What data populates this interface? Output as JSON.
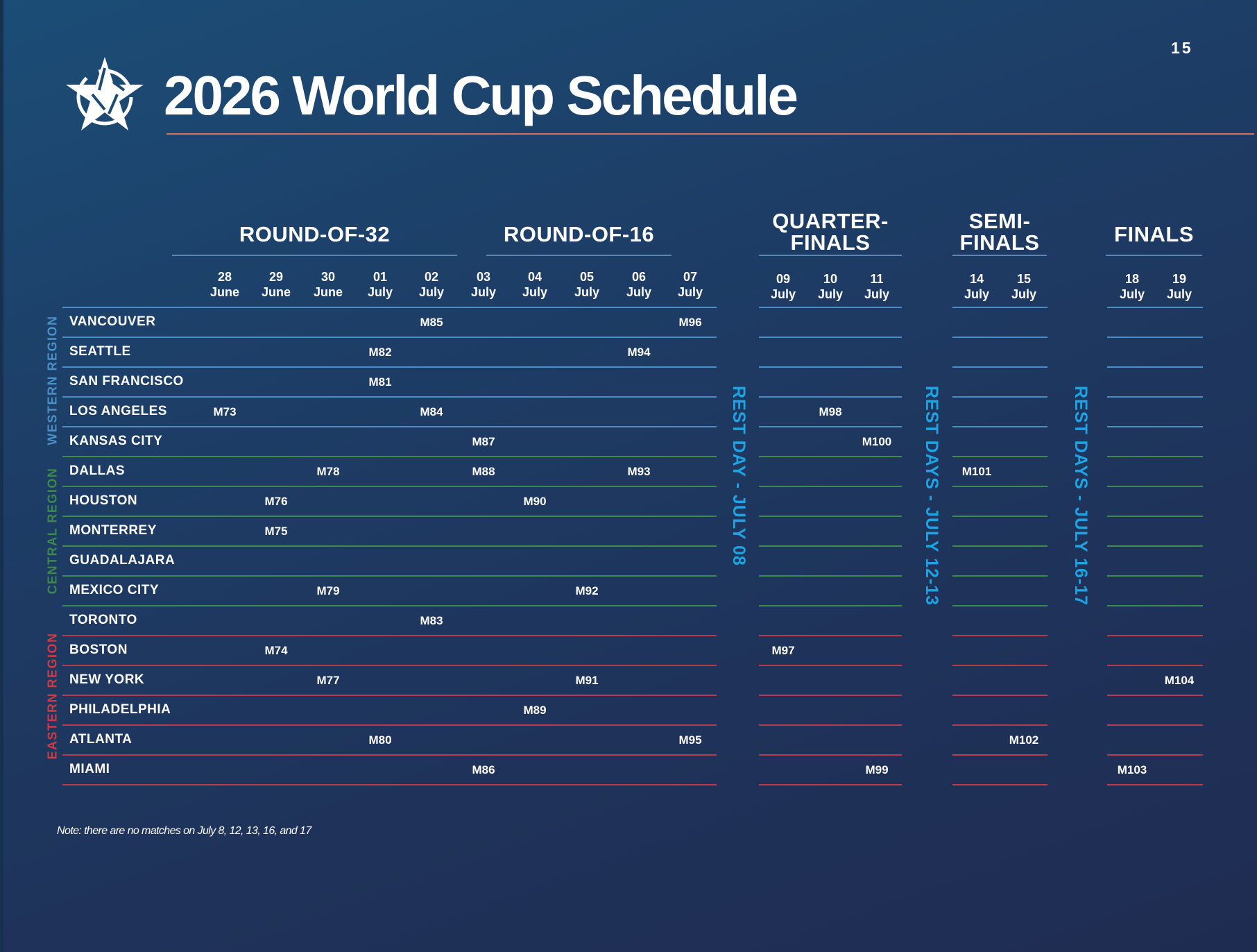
{
  "page_number": "15",
  "title": "2026 World Cup Schedule",
  "logo": "star-emblem-icon",
  "colors": {
    "accent_rule": "#d9705d",
    "western": "#4a90c8",
    "central": "#3b8a4a",
    "eastern": "#d03a45",
    "rest": "#1fa3e3"
  },
  "sections": [
    {
      "label": "ROUND-OF-32",
      "columns": [
        {
          "day": "28",
          "month": "June"
        },
        {
          "day": "29",
          "month": "June"
        },
        {
          "day": "30",
          "month": "June"
        },
        {
          "day": "01",
          "month": "July"
        },
        {
          "day": "02",
          "month": "July"
        }
      ]
    },
    {
      "label": "ROUND-OF-16",
      "columns": [
        {
          "day": "03",
          "month": "July"
        },
        {
          "day": "04",
          "month": "July"
        },
        {
          "day": "05",
          "month": "July"
        },
        {
          "day": "06",
          "month": "July"
        },
        {
          "day": "07",
          "month": "July"
        }
      ]
    },
    {
      "label": "QUARTER-\nFINALS",
      "columns": [
        {
          "day": "09",
          "month": "July"
        },
        {
          "day": "10",
          "month": "July"
        },
        {
          "day": "11",
          "month": "July"
        }
      ]
    },
    {
      "label": "SEMI-\nFINALS",
      "columns": [
        {
          "day": "14",
          "month": "July"
        },
        {
          "day": "15",
          "month": "July"
        }
      ]
    },
    {
      "label": "FINALS",
      "columns": [
        {
          "day": "18",
          "month": "July"
        },
        {
          "day": "19",
          "month": "July"
        }
      ]
    }
  ],
  "regions": [
    {
      "label": "WESTERN REGION",
      "key": "western"
    },
    {
      "label": "CENTRAL REGION",
      "key": "central"
    },
    {
      "label": "EASTERN REGION",
      "key": "eastern"
    }
  ],
  "rows": [
    {
      "city": "VANCOUVER",
      "region": "western",
      "matches": [
        "",
        "",
        "",
        "",
        "M85",
        "",
        "",
        "",
        "",
        "M96",
        "",
        "",
        "",
        "",
        "",
        "",
        ""
      ]
    },
    {
      "city": "SEATTLE",
      "region": "western",
      "matches": [
        "",
        "",
        "",
        "M82",
        "",
        "",
        "",
        "",
        "M94",
        "",
        "",
        "",
        "",
        "",
        "",
        "",
        ""
      ]
    },
    {
      "city": "SAN FRANCISCO",
      "region": "western",
      "matches": [
        "",
        "",
        "",
        "M81",
        "",
        "",
        "",
        "",
        "",
        "",
        "",
        "",
        "",
        "",
        "",
        "",
        ""
      ]
    },
    {
      "city": "LOS ANGELES",
      "region": "western",
      "matches": [
        "M73",
        "",
        "",
        "",
        "M84",
        "",
        "",
        "",
        "",
        "",
        "",
        "M98",
        "",
        "",
        "",
        "",
        ""
      ]
    },
    {
      "city": "KANSAS CITY",
      "region": "western",
      "matches": [
        "",
        "",
        "",
        "",
        "",
        "M87",
        "",
        "",
        "",
        "",
        "",
        "",
        "M100",
        "",
        "",
        "",
        ""
      ]
    },
    {
      "city": "DALLAS",
      "region": "central",
      "matches": [
        "",
        "",
        "M78",
        "",
        "",
        "M88",
        "",
        "",
        "M93",
        "",
        "",
        "",
        "",
        "M101",
        "",
        "",
        ""
      ]
    },
    {
      "city": "HOUSTON",
      "region": "central",
      "matches": [
        "",
        "M76",
        "",
        "",
        "",
        "",
        "M90",
        "",
        "",
        "",
        "",
        "",
        "",
        "",
        "",
        "",
        ""
      ]
    },
    {
      "city": "MONTERREY",
      "region": "central",
      "matches": [
        "",
        "M75",
        "",
        "",
        "",
        "",
        "",
        "",
        "",
        "",
        "",
        "",
        "",
        "",
        "",
        "",
        ""
      ]
    },
    {
      "city": "GUADALAJARA",
      "region": "central",
      "matches": [
        "",
        "",
        "",
        "",
        "",
        "",
        "",
        "",
        "",
        "",
        "",
        "",
        "",
        "",
        "",
        "",
        ""
      ]
    },
    {
      "city": "MEXICO CITY",
      "region": "central",
      "matches": [
        "",
        "",
        "M79",
        "",
        "",
        "",
        "",
        "M92",
        "",
        "",
        "",
        "",
        "",
        "",
        "",
        "",
        ""
      ]
    },
    {
      "city": "TORONTO",
      "region": "eastern",
      "matches": [
        "",
        "",
        "",
        "",
        "M83",
        "",
        "",
        "",
        "",
        "",
        "",
        "",
        "",
        "",
        "",
        "",
        ""
      ]
    },
    {
      "city": "BOSTON",
      "region": "eastern",
      "matches": [
        "",
        "M74",
        "",
        "",
        "",
        "",
        "",
        "",
        "",
        "",
        "M97",
        "",
        "",
        "",
        "",
        "",
        ""
      ]
    },
    {
      "city": "NEW YORK",
      "region": "eastern",
      "matches": [
        "",
        "",
        "M77",
        "",
        "",
        "",
        "",
        "M91",
        "",
        "",
        "",
        "",
        "",
        "",
        "",
        "",
        "M104"
      ]
    },
    {
      "city": "PHILADELPHIA",
      "region": "eastern",
      "matches": [
        "",
        "",
        "",
        "",
        "",
        "",
        "M89",
        "",
        "",
        "",
        "",
        "",
        "",
        "",
        "",
        "",
        ""
      ]
    },
    {
      "city": "ATLANTA",
      "region": "eastern",
      "matches": [
        "",
        "",
        "",
        "M80",
        "",
        "",
        "",
        "",
        "",
        "M95",
        "",
        "",
        "",
        "",
        "M102",
        "",
        ""
      ]
    },
    {
      "city": "MIAMI",
      "region": "eastern",
      "matches": [
        "",
        "",
        "",
        "",
        "",
        "M86",
        "",
        "",
        "",
        "",
        "",
        "",
        "M99",
        "",
        "",
        "M103",
        ""
      ]
    }
  ],
  "rest_days": [
    "REST DAY - JULY 08",
    "REST DAYS - JULY 12-13",
    "REST DAYS - JULY 16-17"
  ],
  "note": "Note: there are no matches on July 8, 12, 13, 16, and 17"
}
